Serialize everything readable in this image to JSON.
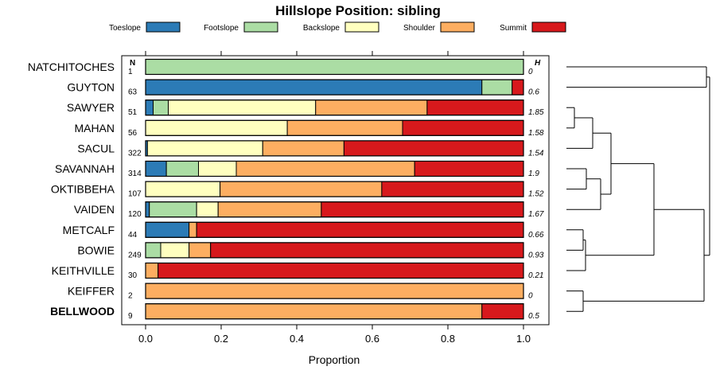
{
  "chart_data": {
    "type": "bar",
    "orientation": "horizontal",
    "stacked": true,
    "title": "Hillslope Position: sibling",
    "xlabel": "Proportion",
    "ylabel": "",
    "xlim": [
      0,
      1
    ],
    "xticks": [
      0,
      0.2,
      0.4,
      0.6,
      0.8,
      1
    ],
    "xtick_labels": [
      "0.0",
      "0.2",
      "0.4",
      "0.6",
      "0.8",
      "1.0"
    ],
    "legend": [
      {
        "name": "Toeslope",
        "color": "#2c7bb6"
      },
      {
        "name": "Footslope",
        "color": "#abdda4"
      },
      {
        "name": "Backslope",
        "color": "#ffffbf"
      },
      {
        "name": "Shoulder",
        "color": "#fdae61"
      },
      {
        "name": "Summit",
        "color": "#d7191c"
      }
    ],
    "legend_position": "top",
    "n_header": "N",
    "h_header": "H",
    "categories": [
      "NATCHITOCHES",
      "GUYTON",
      "SAWYER",
      "MAHAN",
      "SACUL",
      "SAVANNAH",
      "OKTIBBEHA",
      "VAIDEN",
      "METCALF",
      "BOWIE",
      "KEITHVILLE",
      "KEIFFER",
      "BELLWOOD"
    ],
    "highlighted_category": "BELLWOOD",
    "n_values": [
      "1",
      "63",
      "51",
      "56",
      "322",
      "314",
      "107",
      "120",
      "44",
      "249",
      "30",
      "2",
      "9"
    ],
    "h_values": [
      "0",
      "0.6",
      "1.85",
      "1.58",
      "1.54",
      "1.9",
      "1.52",
      "1.67",
      "0.66",
      "0.93",
      "0.21",
      "0",
      "0.5"
    ],
    "series": [
      {
        "name": "Toeslope",
        "values": [
          0,
          0.89,
          0.02,
          0,
          0.005,
          0.055,
          0,
          0.01,
          0.115,
          0,
          0,
          0,
          0
        ]
      },
      {
        "name": "Footslope",
        "values": [
          1.0,
          0.08,
          0.04,
          0,
          0,
          0.085,
          0,
          0.125,
          0,
          0.04,
          0,
          0,
          0
        ]
      },
      {
        "name": "Backslope",
        "values": [
          0,
          0,
          0.39,
          0.375,
          0.305,
          0.1,
          0.197,
          0.057,
          0,
          0.075,
          0,
          0,
          0
        ]
      },
      {
        "name": "Shoulder",
        "values": [
          0,
          0,
          0.295,
          0.305,
          0.215,
          0.472,
          0.428,
          0.273,
          0.02,
          0.057,
          0.033,
          1.0,
          0.89
        ]
      },
      {
        "name": "Summit",
        "values": [
          0,
          0.03,
          0.255,
          0.32,
          0.475,
          0.288,
          0.375,
          0.535,
          0.865,
          0.828,
          0.967,
          0,
          0.11
        ]
      }
    ],
    "dendrogram": {
      "description": "hierarchical clustering of series",
      "leaf_order": [
        "NATCHITOCHES",
        "GUYTON",
        "SAWYER",
        "MAHAN",
        "SACUL",
        "SAVANNAH",
        "OKTIBBEHA",
        "VAIDEN",
        "METCALF",
        "BOWIE",
        "KEITHVILLE",
        "KEIFFER",
        "BELLWOOD"
      ]
    }
  }
}
